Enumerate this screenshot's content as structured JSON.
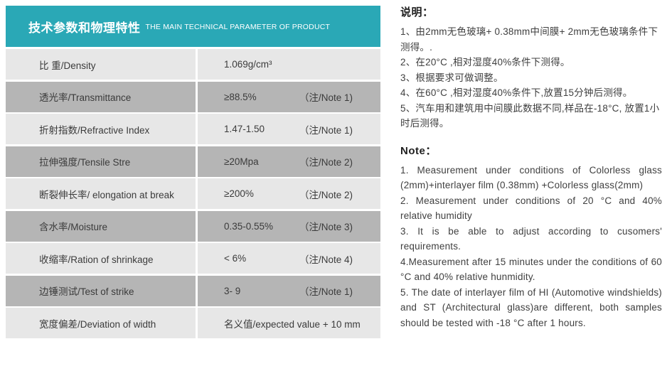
{
  "table": {
    "header": {
      "title_zh": "技术参数和物理特性",
      "title_en": "THE MAIN TECHNICAL PARAMETER OF PRODUCT"
    },
    "rows": [
      {
        "label": "比 重/Density",
        "value": "1.069g/cm³",
        "note": ""
      },
      {
        "label": "透光率/Transmittance",
        "value": "≥88.5%",
        "note": "（注/Note 1)"
      },
      {
        "label": "折射指数/Refractive Index",
        "value": "1.47-1.50",
        "note": "（注/Note 1)"
      },
      {
        "label": "拉伸强度/Tensile Stre",
        "value": "≥20Mpa",
        "note": "（注/Note 2)"
      },
      {
        "label": "断裂伸长率/ elongation at break",
        "value": "≥200%",
        "note": "（注/Note 2)"
      },
      {
        "label": "含水率/Moisture",
        "value": "0.35-0.55%",
        "note": "（注/Note 3)"
      },
      {
        "label": "收缩率/Ration of shrinkage",
        "value": "< 6%",
        "note": "（注/Note 4)"
      },
      {
        "label": "边锤测试/Test of strike",
        "value": "3- 9",
        "note": "（注/Note 1)"
      },
      {
        "label": "宽度偏差/Deviation of width",
        "value": "名义值/expected value + 10 mm",
        "note": ""
      }
    ]
  },
  "notes_zh": {
    "title": "说明：",
    "items": [
      "1、由2mm无色玻璃+ 0.38mm中间膜+ 2mm无色玻璃条件下测得。.",
      "2、在20°C ,相对湿度40%条件下测得。",
      "3、根据要求可做调整。",
      "4、在60°C ,相对湿度40%条件下,放置15分钟后测得。",
      "5、汽车用和建筑用中间膜此数据不同,样品在-18°C, 放置1小时后测得。"
    ]
  },
  "notes_en": {
    "title": "Note：",
    "items": [
      "1. Measurement under conditions of Colorless glass (2mm)+interlayer film (0.38mm) +Colorless glass(2mm)",
      "2. Measurement under conditions of 20 °C and 40% relative humidity",
      "3. It is be able to adjust according to cusomers' requirements.",
      "4.Measurement after 15 minutes under the conditions of 60 °C and 40% relative hunmidity.",
      "5. The date of interlayer film of HI (Automotive windshields) and ST (Architectural glass)are different, both samples should be tested with -18 °C after 1 hours."
    ]
  },
  "colors": {
    "header_teal": "#2aa8b6",
    "row_light": "#e7e7e7",
    "row_dark": "#b5b5b5"
  }
}
